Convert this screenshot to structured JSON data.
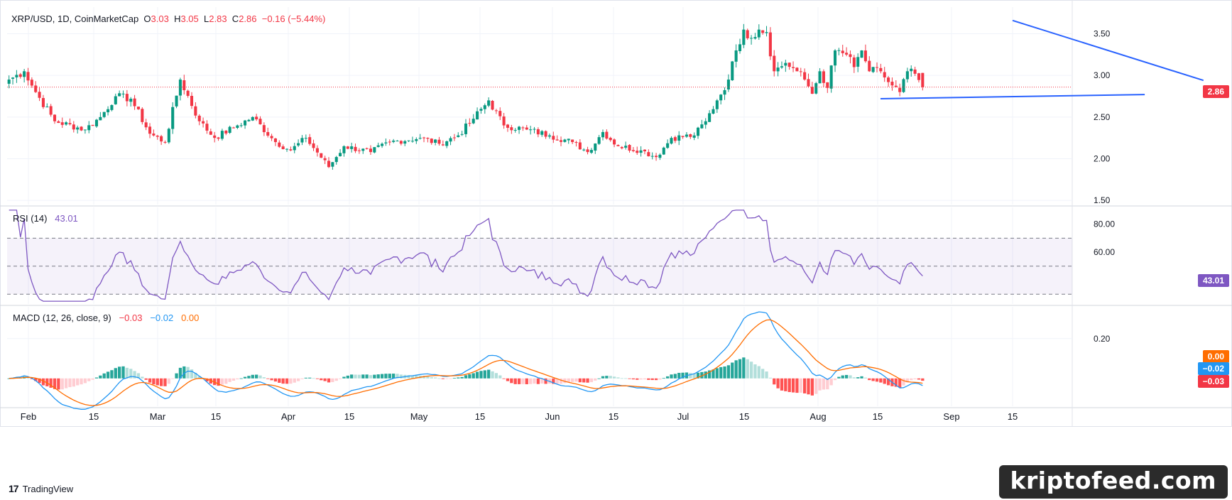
{
  "header": {
    "symbol": "XRP/USD, 1D, CoinMarketCap",
    "o_label": "O",
    "o": "3.03",
    "h_label": "H",
    "h": "3.05",
    "l_label": "L",
    "l": "2.83",
    "c_label": "C",
    "c": "2.86",
    "change": "−0.16 (−5.44%)"
  },
  "rsi_legend": {
    "label": "RSI (14)",
    "value": "43.01"
  },
  "macd_legend": {
    "label": "MACD (12, 26, close, 9)",
    "hist": "−0.03",
    "macd": "−0.02",
    "signal": "0.00"
  },
  "price_tag": "2.86",
  "rsi_tag": "43.01",
  "macd_tags": {
    "signal": "0.00",
    "macd": "−0.02",
    "hist": "−0.03"
  },
  "branding": {
    "tradingview": "TradingView",
    "watermark": "kriptofeed.com"
  },
  "colors": {
    "up": "#089981",
    "down": "#f23645",
    "rsi": "#7e57c2",
    "macd": "#2962ff",
    "signal": "#ff6d00",
    "trendline": "#2962ff"
  },
  "chart_data": [
    {
      "type": "candlestick",
      "title": "XRP/USD, 1D, CoinMarketCap",
      "x_ticks": [
        "Feb",
        "15",
        "Mar",
        "15",
        "Apr",
        "15",
        "May",
        "15",
        "Jun",
        "15",
        "Jul",
        "15",
        "Aug",
        "15",
        "Sep",
        "15"
      ],
      "y_ticks": [
        "3.50",
        "3.00",
        "2.50",
        "2.00",
        "1.50"
      ],
      "ylim": [
        1.45,
        3.82
      ],
      "last_price": 2.86,
      "close_anchors": [
        [
          0,
          2.95
        ],
        [
          4,
          3.05
        ],
        [
          7,
          2.8
        ],
        [
          12,
          2.45
        ],
        [
          20,
          2.35
        ],
        [
          24,
          2.5
        ],
        [
          28,
          2.75
        ],
        [
          32,
          2.72
        ],
        [
          37,
          2.3
        ],
        [
          41,
          2.2
        ],
        [
          45,
          2.95
        ],
        [
          50,
          2.45
        ],
        [
          54,
          2.25
        ],
        [
          60,
          2.4
        ],
        [
          64,
          2.5
        ],
        [
          70,
          2.2
        ],
        [
          74,
          2.1
        ],
        [
          78,
          2.25
        ],
        [
          84,
          1.9
        ],
        [
          88,
          2.15
        ],
        [
          95,
          2.08
        ],
        [
          100,
          2.2
        ],
        [
          108,
          2.25
        ],
        [
          113,
          2.18
        ],
        [
          118,
          2.28
        ],
        [
          122,
          2.48
        ],
        [
          126,
          2.7
        ],
        [
          130,
          2.4
        ],
        [
          136,
          2.35
        ],
        [
          142,
          2.28
        ],
        [
          148,
          2.2
        ],
        [
          152,
          2.08
        ],
        [
          156,
          2.32
        ],
        [
          160,
          2.15
        ],
        [
          166,
          2.1
        ],
        [
          170,
          2.02
        ],
        [
          174,
          2.25
        ],
        [
          180,
          2.28
        ],
        [
          183,
          2.45
        ],
        [
          186,
          2.7
        ],
        [
          189,
          2.95
        ],
        [
          191,
          3.3
        ],
        [
          193,
          3.55
        ],
        [
          195,
          3.45
        ],
        [
          197,
          3.55
        ],
        [
          199,
          3.52
        ],
        [
          201,
          3.05
        ],
        [
          204,
          3.15
        ],
        [
          207,
          3.05
        ],
        [
          209,
          2.95
        ],
        [
          211,
          2.78
        ],
        [
          213,
          3.05
        ],
        [
          215,
          2.85
        ],
        [
          217,
          3.3
        ],
        [
          220,
          3.25
        ],
        [
          222,
          3.1
        ],
        [
          224,
          3.3
        ],
        [
          226,
          3.05
        ],
        [
          229,
          3.05
        ],
        [
          231,
          2.92
        ],
        [
          234,
          2.8
        ],
        [
          236,
          3.05
        ],
        [
          238,
          3.02
        ],
        [
          240,
          2.86
        ]
      ],
      "rsi": {
        "levels": [
          70,
          50,
          30
        ],
        "y_ticks": [
          "80.00",
          "60.00"
        ],
        "last": 43.01
      },
      "macd": {
        "params": "12, 26, close, 9",
        "y_ticks": [
          "0.20"
        ],
        "last_hist": -0.03,
        "last_macd": -0.02,
        "last_signal": 0.0
      },
      "annotations": [
        {
          "type": "trendline",
          "name": "upper",
          "from": [
            1.37,
            3.66
          ],
          "to": [
            1.63,
            2.94
          ]
        },
        {
          "type": "trendline",
          "name": "lower",
          "from": [
            1.19,
            2.72
          ],
          "to": [
            1.55,
            2.77
          ]
        }
      ]
    }
  ]
}
